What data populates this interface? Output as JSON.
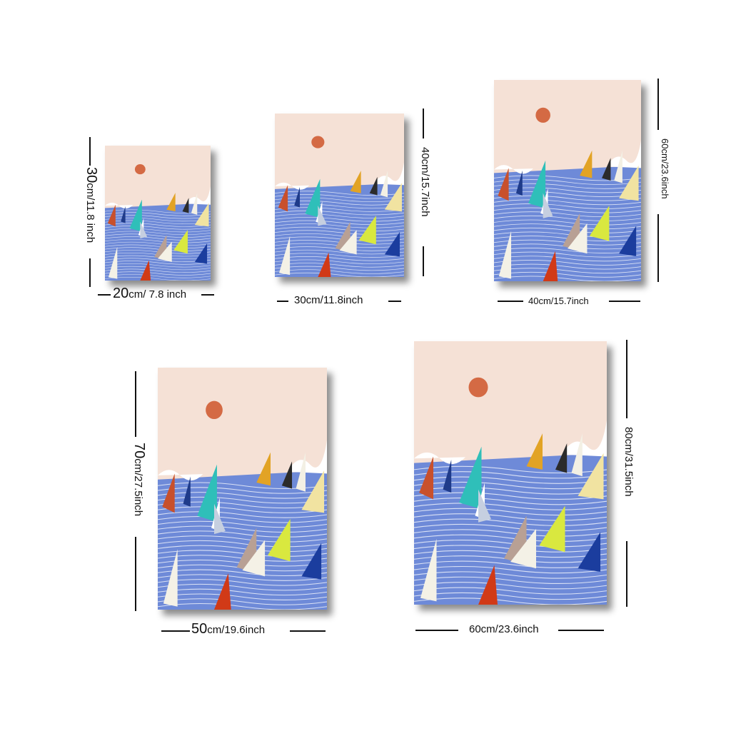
{
  "artwork": {
    "subject": "sailboat regatta on blue sea with pink sky and orange sun",
    "colors": {
      "sky": "#f5e1d6",
      "sea": "#6e8ad8",
      "sun": "#d46a44",
      "clouds": "#ffffff"
    }
  },
  "sizes": [
    {
      "width_num": "20",
      "width_unit": "cm/ 7.8 inch",
      "height_num": "30",
      "height_unit": "cm/11.8 inch"
    },
    {
      "width_num": "",
      "width_unit": "30cm/11.8inch",
      "height_num": "",
      "height_unit": "40cm/15.7inch"
    },
    {
      "width_num": "",
      "width_unit": "40cm/15.7inch",
      "height_num": "",
      "height_unit": "60cm/23.6inch"
    },
    {
      "width_num": "50",
      "width_unit": "cm/19.6inch",
      "height_num": "70",
      "height_unit": "cm/27.5inch"
    },
    {
      "width_num": "",
      "width_unit": "60cm/23.6inch",
      "height_num": "",
      "height_unit": "80cm/31.5inch"
    }
  ]
}
